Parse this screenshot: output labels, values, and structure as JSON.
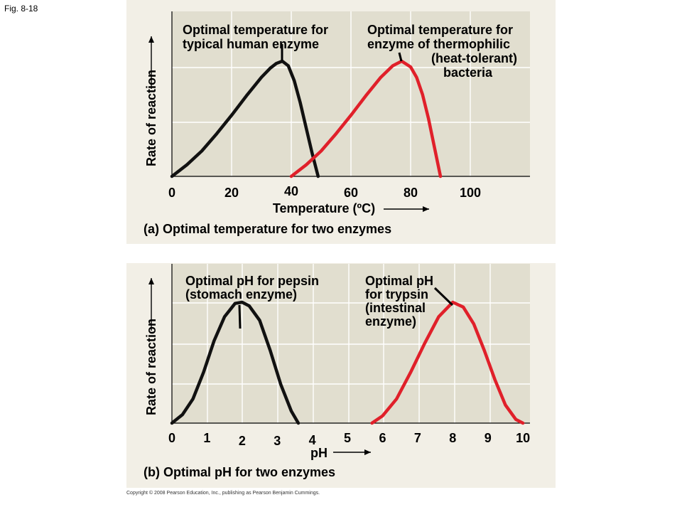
{
  "figure_label": "Fig. 8-18",
  "copyright": "Copyright © 2008 Pearson Education, Inc., publishing as Pearson Benjamin Cummings.",
  "colors": {
    "panel_bg": "#f2efe6",
    "plot_bg": "#e1decf",
    "grid": "#ffffff",
    "black_curve": "#111111",
    "red_curve": "#e0202a"
  },
  "chart_data": [
    {
      "type": "line",
      "caption": "(a) Optimal temperature for two enzymes",
      "xlabel": "Temperature (ºC)",
      "ylabel": "Rate of reaction",
      "xlim": [
        0,
        120
      ],
      "xticks": [
        "0",
        "20",
        "40",
        "60",
        "80",
        "100"
      ],
      "xtick_values": [
        0,
        20,
        40,
        60,
        80,
        100
      ],
      "ylim": [
        0,
        1
      ],
      "grid": true,
      "series": [
        {
          "color": "#111111",
          "annotation": [
            "Optimal temperature for",
            "typical human enzyme"
          ],
          "x": [
            0,
            5,
            10,
            15,
            20,
            25,
            30,
            33,
            35,
            37,
            39,
            41,
            43,
            45,
            47,
            49
          ],
          "y": [
            0.0,
            0.1,
            0.22,
            0.37,
            0.53,
            0.7,
            0.86,
            0.94,
            0.98,
            1.0,
            0.96,
            0.83,
            0.64,
            0.42,
            0.2,
            0.0
          ]
        },
        {
          "color": "#e0202a",
          "annotation": [
            "Optimal temperature for",
            "enzyme of thermophilic",
            "(heat-tolerant)",
            "bacteria"
          ],
          "x": [
            40,
            45,
            50,
            55,
            60,
            65,
            70,
            74,
            77,
            80,
            82,
            84,
            86,
            88,
            90
          ],
          "y": [
            0.0,
            0.1,
            0.22,
            0.37,
            0.53,
            0.7,
            0.86,
            0.96,
            1.0,
            0.95,
            0.86,
            0.71,
            0.5,
            0.25,
            0.0
          ]
        }
      ]
    },
    {
      "type": "line",
      "caption": "(b) Optimal pH for two enzymes",
      "xlabel": "pH",
      "ylabel": "Rate of reaction",
      "xlim": [
        0,
        10.2
      ],
      "xticks": [
        "0",
        "1",
        "2",
        "3",
        "4",
        "5",
        "6",
        "7",
        "8",
        "9",
        "10"
      ],
      "xtick_values": [
        0,
        1,
        2,
        3,
        4,
        5,
        6,
        7,
        8,
        9,
        10
      ],
      "ylim": [
        0,
        1
      ],
      "grid": true,
      "series": [
        {
          "color": "#111111",
          "annotation": [
            "Optimal pH for pepsin",
            "(stomach enzyme)"
          ],
          "x": [
            0.0,
            0.3,
            0.6,
            0.9,
            1.2,
            1.5,
            1.8,
            2.0,
            2.2,
            2.5,
            2.8,
            3.1,
            3.4,
            3.6
          ],
          "y": [
            0.0,
            0.07,
            0.2,
            0.42,
            0.68,
            0.88,
            0.99,
            1.0,
            0.97,
            0.85,
            0.6,
            0.32,
            0.1,
            0.0
          ]
        },
        {
          "color": "#e0202a",
          "annotation": [
            "Optimal pH",
            "for trypsin",
            "(intestinal",
            "enzyme)"
          ],
          "x": [
            5.7,
            6.0,
            6.4,
            6.8,
            7.2,
            7.6,
            8.0,
            8.3,
            8.6,
            8.9,
            9.2,
            9.5,
            9.8,
            10.0
          ],
          "y": [
            0.0,
            0.06,
            0.2,
            0.42,
            0.66,
            0.88,
            1.0,
            0.96,
            0.82,
            0.6,
            0.36,
            0.15,
            0.03,
            0.0
          ]
        }
      ]
    }
  ]
}
